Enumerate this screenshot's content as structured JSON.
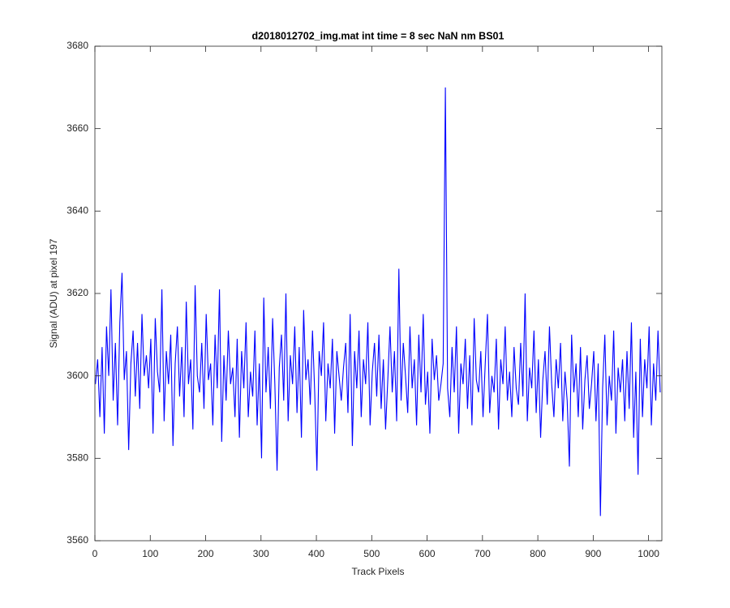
{
  "chart_data": {
    "type": "line",
    "title": "d2018012702_img.mat int time = 8 sec  NaN nm BS01",
    "xlabel": "Track Pixels",
    "ylabel": "Signal (ADU) at pixel 197",
    "xlim": [
      0,
      1024
    ],
    "xticks": [
      0,
      100,
      200,
      300,
      400,
      500,
      600,
      700,
      800,
      900,
      1000
    ],
    "ylim": [
      3560,
      3680
    ],
    "yticks": [
      3560,
      3580,
      3600,
      3620,
      3640,
      3660,
      3680
    ],
    "grid": false,
    "x": [
      1,
      5,
      9,
      13,
      17,
      21,
      25,
      29,
      33,
      37,
      41,
      45,
      49,
      53,
      57,
      61,
      65,
      69,
      73,
      77,
      81,
      85,
      89,
      93,
      97,
      101,
      105,
      109,
      113,
      117,
      121,
      125,
      129,
      133,
      137,
      141,
      145,
      149,
      153,
      157,
      161,
      165,
      169,
      173,
      177,
      181,
      185,
      189,
      193,
      197,
      201,
      205,
      209,
      213,
      217,
      221,
      225,
      229,
      233,
      237,
      241,
      245,
      249,
      253,
      257,
      261,
      265,
      269,
      273,
      277,
      281,
      285,
      289,
      293,
      297,
      301,
      305,
      309,
      313,
      317,
      321,
      325,
      329,
      333,
      337,
      341,
      345,
      349,
      353,
      357,
      361,
      365,
      369,
      373,
      377,
      381,
      385,
      389,
      393,
      397,
      401,
      405,
      409,
      413,
      417,
      421,
      425,
      429,
      433,
      437,
      441,
      445,
      449,
      453,
      457,
      461,
      465,
      469,
      473,
      477,
      481,
      485,
      489,
      493,
      497,
      501,
      505,
      509,
      513,
      517,
      521,
      525,
      529,
      533,
      537,
      541,
      545,
      549,
      553,
      557,
      561,
      565,
      569,
      573,
      577,
      581,
      585,
      589,
      593,
      597,
      601,
      605,
      609,
      613,
      617,
      621,
      625,
      629,
      633,
      637,
      641,
      645,
      649,
      653,
      657,
      661,
      665,
      669,
      673,
      677,
      681,
      685,
      689,
      693,
      697,
      701,
      705,
      709,
      713,
      717,
      721,
      725,
      729,
      733,
      737,
      741,
      745,
      749,
      753,
      757,
      761,
      765,
      769,
      773,
      777,
      781,
      785,
      789,
      793,
      797,
      801,
      805,
      809,
      813,
      817,
      821,
      825,
      829,
      833,
      837,
      841,
      845,
      849,
      853,
      857,
      861,
      865,
      869,
      873,
      877,
      881,
      885,
      889,
      893,
      897,
      901,
      905,
      909,
      913,
      917,
      921,
      925,
      929,
      933,
      937,
      941,
      945,
      949,
      953,
      957,
      961,
      965,
      969,
      973,
      977,
      981,
      985,
      989,
      993,
      997,
      1001,
      1005,
      1009,
      1013,
      1017,
      1021
    ],
    "series": [
      {
        "color": "#0000ff",
        "values": [
          3598,
          3604,
          3590,
          3607,
          3586,
          3612,
          3600,
          3621,
          3594,
          3608,
          3588,
          3613,
          3625,
          3599,
          3606,
          3582,
          3603,
          3611,
          3595,
          3608,
          3592,
          3615,
          3600,
          3605,
          3597,
          3609,
          3586,
          3614,
          3601,
          3596,
          3621,
          3589,
          3606,
          3598,
          3610,
          3583,
          3603,
          3612,
          3595,
          3607,
          3590,
          3618,
          3598,
          3604,
          3587,
          3622,
          3600,
          3596,
          3608,
          3592,
          3615,
          3599,
          3603,
          3588,
          3610,
          3597,
          3621,
          3584,
          3605,
          3594,
          3611,
          3598,
          3602,
          3590,
          3609,
          3585,
          3606,
          3597,
          3613,
          3590,
          3601,
          3595,
          3611,
          3588,
          3603,
          3580,
          3619,
          3596,
          3607,
          3592,
          3614,
          3598,
          3577,
          3602,
          3610,
          3594,
          3620,
          3589,
          3605,
          3598,
          3612,
          3591,
          3607,
          3585,
          3616,
          3599,
          3604,
          3593,
          3611,
          3596,
          3577,
          3606,
          3600,
          3613,
          3589,
          3603,
          3597,
          3609,
          3586,
          3606,
          3600,
          3594,
          3602,
          3608,
          3591,
          3615,
          3583,
          3606,
          3597,
          3611,
          3590,
          3604,
          3598,
          3613,
          3588,
          3601,
          3608,
          3595,
          3610,
          3592,
          3604,
          3587,
          3599,
          3612,
          3596,
          3606,
          3589,
          3626,
          3594,
          3608,
          3600,
          3591,
          3612,
          3597,
          3604,
          3588,
          3610,
          3596,
          3615,
          3593,
          3601,
          3586,
          3609,
          3599,
          3605,
          3594,
          3598,
          3603,
          3670,
          3597,
          3590,
          3607,
          3596,
          3612,
          3586,
          3603,
          3598,
          3609,
          3592,
          3605,
          3588,
          3614,
          3599,
          3596,
          3606,
          3590,
          3603,
          3615,
          3591,
          3600,
          3596,
          3609,
          3587,
          3604,
          3598,
          3612,
          3594,
          3601,
          3590,
          3607,
          3597,
          3593,
          3608,
          3595,
          3620,
          3589,
          3602,
          3597,
          3611,
          3591,
          3604,
          3585,
          3599,
          3606,
          3593,
          3612,
          3598,
          3590,
          3604,
          3597,
          3608,
          3589,
          3601,
          3594,
          3578,
          3610,
          3596,
          3603,
          3590,
          3607,
          3587,
          3599,
          3605,
          3592,
          3598,
          3606,
          3589,
          3603,
          3566,
          3597,
          3610,
          3588,
          3600,
          3594,
          3611,
          3586,
          3602,
          3596,
          3604,
          3589,
          3606,
          3592,
          3613,
          3585,
          3601,
          3576,
          3609,
          3590,
          3604,
          3597,
          3612,
          3588,
          3603,
          3594,
          3611,
          3596
        ]
      }
    ]
  }
}
